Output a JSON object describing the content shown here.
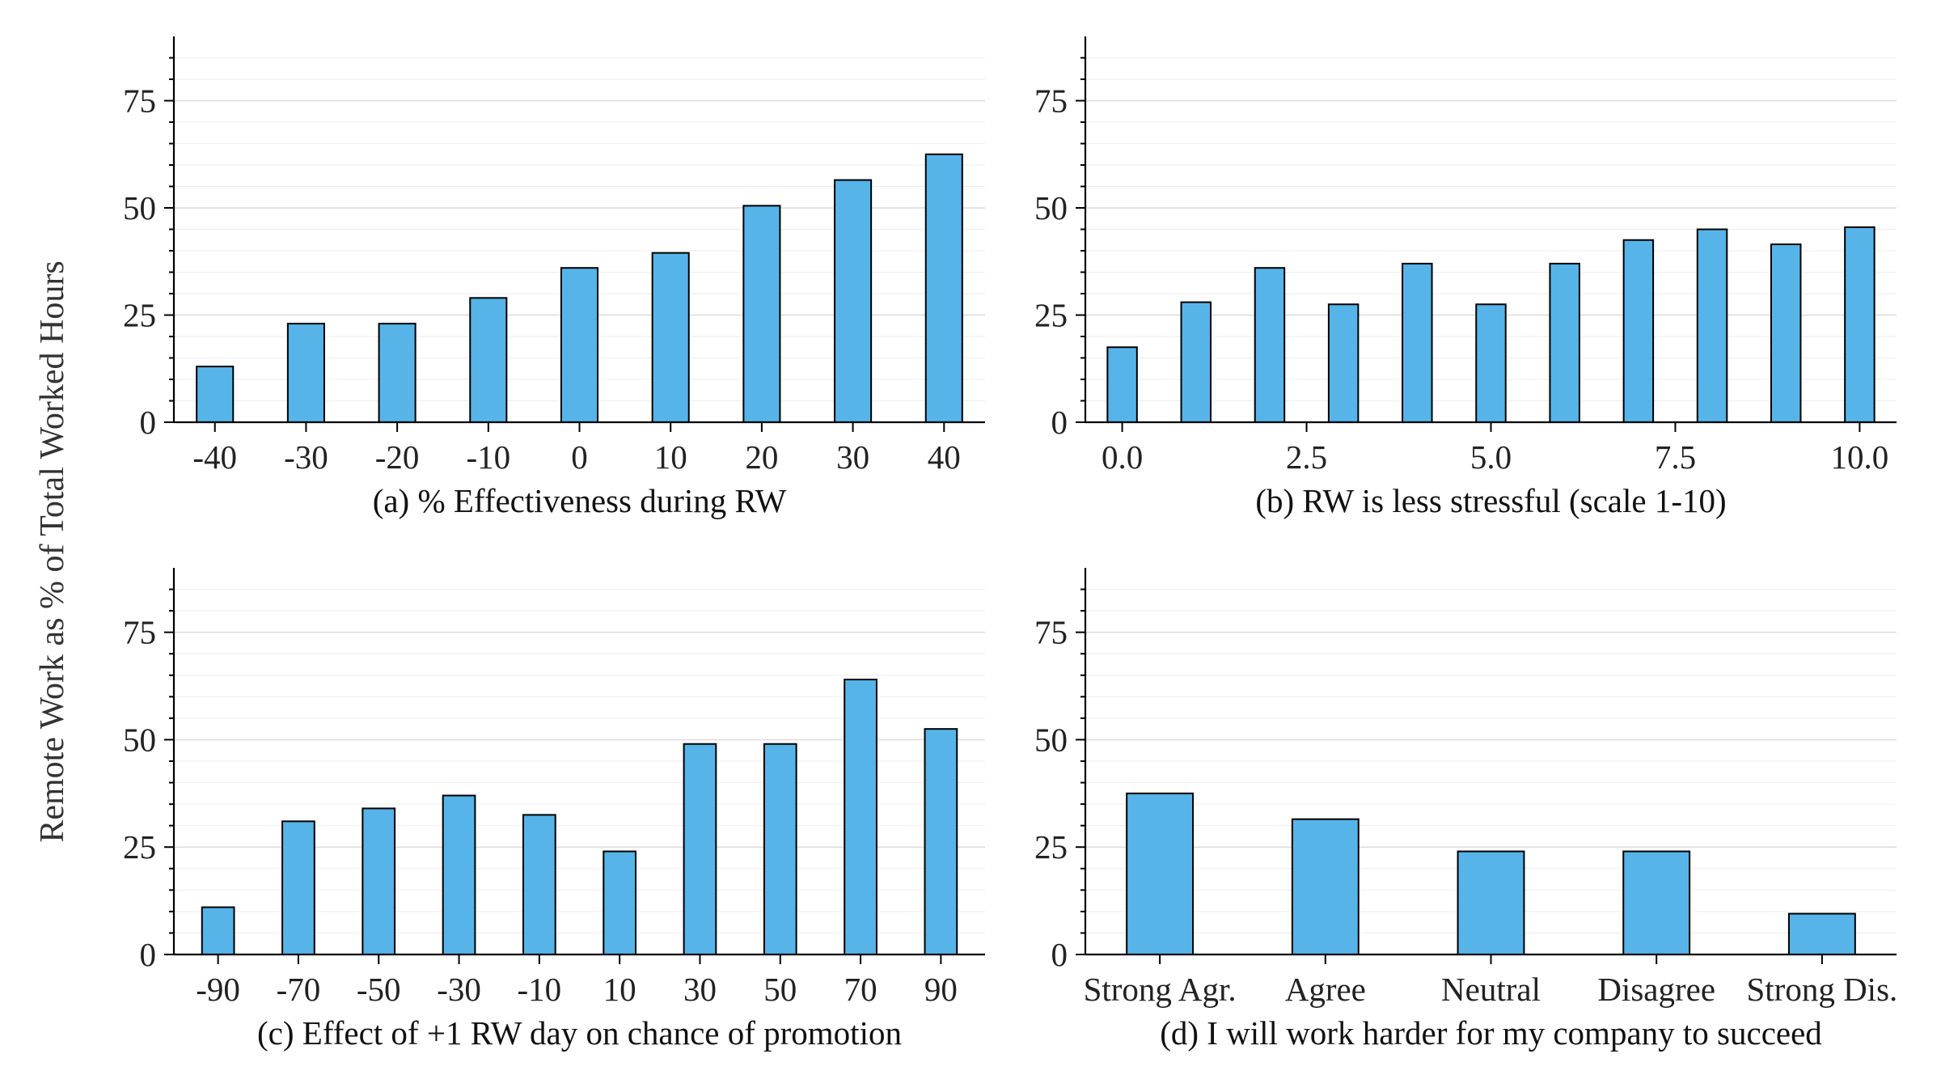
{
  "ylabel": "Remote Work as % of Total Worked Hours",
  "chart_data": [
    {
      "id": "a",
      "type": "bar",
      "title": "(a) % Effectiveness during RW",
      "xlabel": "(a) % Effectiveness during RW",
      "ylabel": "Remote Work as % of Total Worked Hours",
      "x": [
        -40,
        -30,
        -20,
        -10,
        0,
        10,
        20,
        30,
        40
      ],
      "values": [
        13,
        23,
        23,
        29,
        36,
        39.5,
        50.5,
        56.5,
        62.5
      ],
      "xticks": [
        -40,
        -30,
        -20,
        -10,
        0,
        10,
        20,
        30,
        40
      ],
      "xtick_labels": [
        "-40",
        "-30",
        "-20",
        "-10",
        "0",
        "10",
        "20",
        "30",
        "40"
      ],
      "xlim": [
        -44.5,
        44.5
      ],
      "yticks": [
        0,
        25,
        50,
        75
      ],
      "ylim": [
        0,
        90
      ],
      "bar_width": 4,
      "color": "#56b4e9"
    },
    {
      "id": "b",
      "type": "bar",
      "title": "(b) RW is less stressful (scale 1-10)",
      "xlabel": "(b) RW is less stressful (scale 1-10)",
      "ylabel": "",
      "x": [
        0,
        1,
        2,
        3,
        4,
        5,
        6,
        7,
        8,
        9,
        10
      ],
      "values": [
        17.5,
        28,
        36,
        27.5,
        37,
        27.5,
        37,
        42.5,
        45,
        41.5,
        45.5
      ],
      "xticks": [
        0,
        2.5,
        5,
        7.5,
        10
      ],
      "xtick_labels": [
        "0.0",
        "2.5",
        "5.0",
        "7.5",
        "10.0"
      ],
      "xlim": [
        -0.5,
        10.5
      ],
      "yticks": [
        0,
        25,
        50,
        75
      ],
      "ylim": [
        0,
        90
      ],
      "bar_width": 0.4,
      "color": "#56b4e9"
    },
    {
      "id": "c",
      "type": "bar",
      "title": "(c) Effect of +1 RW day on chance of promotion",
      "xlabel": "(c) Effect of +1 RW day on chance of promotion",
      "ylabel": "",
      "x": [
        -90,
        -70,
        -50,
        -30,
        -10,
        10,
        30,
        50,
        70,
        90
      ],
      "values": [
        11,
        31,
        34,
        37,
        32.5,
        24,
        49,
        49,
        64,
        52.5
      ],
      "xticks": [
        -90,
        -70,
        -50,
        -30,
        -10,
        10,
        30,
        50,
        70,
        90
      ],
      "xtick_labels": [
        "-90",
        "-70",
        "-50",
        "-30",
        "-10",
        "10",
        "30",
        "50",
        "70",
        "90"
      ],
      "xlim": [
        -101,
        101
      ],
      "yticks": [
        0,
        25,
        50,
        75
      ],
      "ylim": [
        0,
        90
      ],
      "bar_width": 8,
      "color": "#56b4e9"
    },
    {
      "id": "d",
      "type": "bar",
      "title": "(d) I will work harder for my company to succeed",
      "xlabel": "(d) I will work harder for my company to succeed",
      "ylabel": "",
      "x": [
        0,
        1,
        2,
        3,
        4
      ],
      "categories": [
        "Strong Agr.",
        "Agree",
        "Neutral",
        "Disagree",
        "Strong Dis."
      ],
      "values": [
        37.5,
        31.5,
        24,
        24,
        9.5
      ],
      "xticks": [
        0,
        1,
        2,
        3,
        4
      ],
      "xtick_labels": [
        "Strong Agr.",
        "Agree",
        "Neutral",
        "Disagree",
        "Strong Dis."
      ],
      "xlim": [
        -0.45,
        4.45
      ],
      "yticks": [
        0,
        25,
        50,
        75
      ],
      "ylim": [
        0,
        90
      ],
      "bar_width": 0.4,
      "color": "#56b4e9"
    }
  ]
}
